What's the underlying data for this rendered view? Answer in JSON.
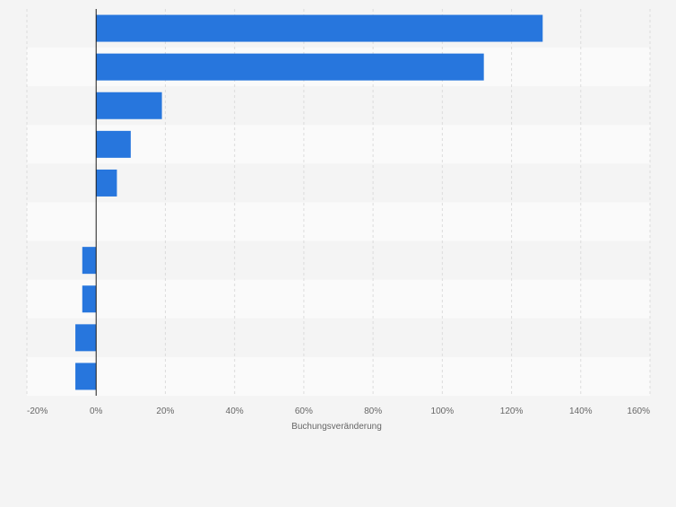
{
  "chart_data": {
    "type": "bar",
    "orientation": "horizontal",
    "categories": [
      "",
      "",
      "",
      "",
      "",
      "",
      "",
      "",
      "",
      ""
    ],
    "values": [
      1.29,
      1.12,
      0.19,
      0.1,
      0.06,
      0.0,
      -0.04,
      -0.04,
      -0.06,
      -0.06
    ],
    "xlabel": "Buchungsveränderung",
    "ylabel": "",
    "xlim": [
      -0.2,
      1.6
    ],
    "x_ticks": [
      {
        "value": -0.2,
        "label": "-20%"
      },
      {
        "value": 0.0,
        "label": "0%"
      },
      {
        "value": 0.2,
        "label": "20%"
      },
      {
        "value": 0.4,
        "label": "40%"
      },
      {
        "value": 0.6,
        "label": "60%"
      },
      {
        "value": 0.8,
        "label": "80%"
      },
      {
        "value": 1.0,
        "label": "100%"
      },
      {
        "value": 1.2,
        "label": "120%"
      },
      {
        "value": 1.4,
        "label": "140%"
      },
      {
        "value": 1.6,
        "label": "160%"
      }
    ],
    "grid": true,
    "legend": "none",
    "colors": {
      "bar": "#2776dd",
      "background": "#f4f4f4",
      "band_light": "#fafafa",
      "band_dark": "#f4f4f4",
      "gridline": "#dcdcdc",
      "zero_line": "#1a1a1a",
      "tick_text": "#666666"
    }
  }
}
